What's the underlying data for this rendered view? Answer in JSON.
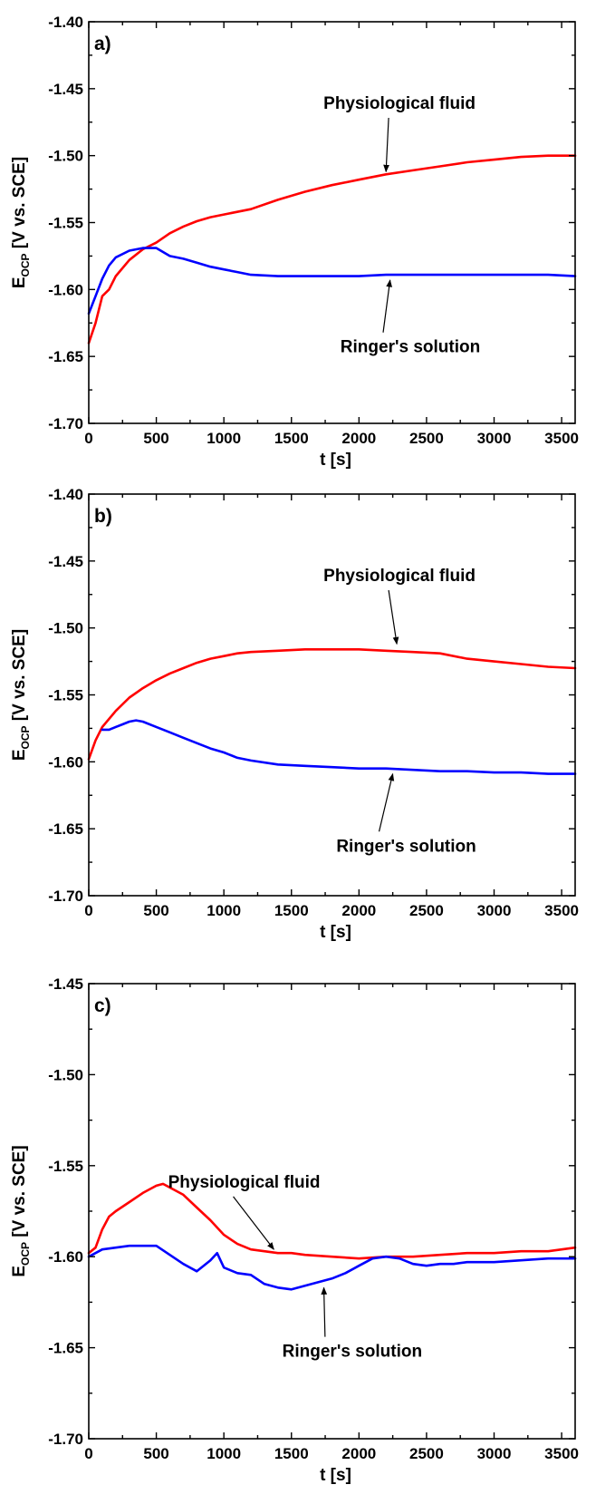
{
  "colors": {
    "physiological_fluid": "#ff0000",
    "ringers_solution": "#0000ff",
    "axes": "#000000"
  },
  "chart_data": [
    {
      "type": "line",
      "panel_label": "a)",
      "xlabel": "t [s]",
      "ylabel_main": "E",
      "ylabel_sub": "OCP",
      "ylabel_rest": " [V vs. SCE]",
      "xlim": [
        0,
        3600
      ],
      "ylim": [
        -1.7,
        -1.4
      ],
      "xticks": [
        "0",
        "500",
        "1000",
        "1500",
        "2000",
        "2500",
        "3000",
        "3500"
      ],
      "yticks": [
        "-1.40",
        "-1.45",
        "-1.50",
        "-1.55",
        "-1.60",
        "-1.65",
        "-1.70"
      ],
      "grid": false,
      "series": [
        {
          "name": "Physiological fluid",
          "x": [
            0,
            50,
            100,
            150,
            200,
            300,
            400,
            500,
            600,
            700,
            800,
            900,
            1000,
            1200,
            1400,
            1600,
            1800,
            2000,
            2200,
            2400,
            2600,
            2800,
            3000,
            3200,
            3400,
            3600
          ],
          "y": [
            -1.64,
            -1.625,
            -1.605,
            -1.6,
            -1.59,
            -1.578,
            -1.57,
            -1.565,
            -1.558,
            -1.553,
            -1.549,
            -1.546,
            -1.544,
            -1.54,
            -1.533,
            -1.527,
            -1.522,
            -1.518,
            -1.514,
            -1.511,
            -1.508,
            -1.505,
            -1.503,
            -1.501,
            -1.5,
            -1.5
          ]
        },
        {
          "name": "Ringer's solution",
          "x": [
            0,
            50,
            100,
            150,
            200,
            300,
            400,
            500,
            600,
            700,
            800,
            900,
            1000,
            1100,
            1200,
            1400,
            1600,
            1800,
            2000,
            2200,
            2400,
            2600,
            2800,
            3000,
            3200,
            3400,
            3600
          ],
          "y": [
            -1.618,
            -1.605,
            -1.592,
            -1.582,
            -1.576,
            -1.571,
            -1.569,
            -1.569,
            -1.575,
            -1.577,
            -1.58,
            -1.583,
            -1.585,
            -1.587,
            -1.589,
            -1.59,
            -1.59,
            -1.59,
            -1.59,
            -1.589,
            -1.589,
            -1.589,
            -1.589,
            -1.589,
            -1.589,
            -1.589,
            -1.59
          ]
        }
      ],
      "annotations": [
        {
          "text": "Physiological fluid",
          "series": "Physiological fluid",
          "label_x": 2300,
          "label_y": -1.465,
          "tip_x": 2200,
          "tip_y": -1.512
        },
        {
          "text": "Ringer's solution",
          "series": "Ringer's solution",
          "label_x": 2380,
          "label_y": -1.647,
          "tip_x": 2230,
          "tip_y": -1.593
        }
      ]
    },
    {
      "type": "line",
      "panel_label": "b)",
      "xlabel": "t [s]",
      "ylabel_main": "E",
      "ylabel_sub": "OCP",
      "ylabel_rest": " [V vs. SCE]",
      "xlim": [
        0,
        3600
      ],
      "ylim": [
        -1.7,
        -1.4
      ],
      "xticks": [
        "0",
        "500",
        "1000",
        "1500",
        "2000",
        "2500",
        "3000",
        "3500"
      ],
      "yticks": [
        "-1.40",
        "-1.45",
        "-1.50",
        "-1.55",
        "-1.60",
        "-1.65",
        "-1.70"
      ],
      "grid": false,
      "series": [
        {
          "name": "Physiological fluid",
          "x": [
            0,
            50,
            100,
            200,
            300,
            400,
            500,
            600,
            700,
            800,
            900,
            1000,
            1100,
            1200,
            1400,
            1600,
            1800,
            2000,
            2200,
            2400,
            2600,
            2800,
            3000,
            3200,
            3400,
            3600
          ],
          "y": [
            -1.598,
            -1.584,
            -1.574,
            -1.562,
            -1.552,
            -1.545,
            -1.539,
            -1.534,
            -1.53,
            -1.526,
            -1.523,
            -1.521,
            -1.519,
            -1.518,
            -1.517,
            -1.516,
            -1.516,
            -1.516,
            -1.517,
            -1.518,
            -1.519,
            -1.523,
            -1.525,
            -1.527,
            -1.529,
            -1.53
          ]
        },
        {
          "name": "Ringer's solution",
          "x": [
            100,
            150,
            200,
            250,
            300,
            350,
            400,
            500,
            600,
            700,
            800,
            900,
            1000,
            1100,
            1200,
            1400,
            1600,
            1800,
            2000,
            2200,
            2400,
            2600,
            2800,
            3000,
            3200,
            3400,
            3600
          ],
          "y": [
            -1.576,
            -1.576,
            -1.574,
            -1.572,
            -1.57,
            -1.569,
            -1.57,
            -1.574,
            -1.578,
            -1.582,
            -1.586,
            -1.59,
            -1.593,
            -1.597,
            -1.599,
            -1.602,
            -1.603,
            -1.604,
            -1.605,
            -1.605,
            -1.606,
            -1.607,
            -1.607,
            -1.608,
            -1.608,
            -1.609,
            -1.609
          ]
        }
      ],
      "annotations": [
        {
          "text": "Physiological fluid",
          "series": "Physiological fluid",
          "label_x": 2300,
          "label_y": -1.465,
          "tip_x": 2280,
          "tip_y": -1.512
        },
        {
          "text": "Ringer's solution",
          "series": "Ringer's solution",
          "label_x": 2350,
          "label_y": -1.667,
          "tip_x": 2250,
          "tip_y": -1.609
        }
      ]
    },
    {
      "type": "line",
      "panel_label": "c)",
      "xlabel": "t [s]",
      "ylabel_main": "E",
      "ylabel_sub": "OCP",
      "ylabel_rest": " [V vs. SCE]",
      "xlim": [
        0,
        3600
      ],
      "ylim": [
        -1.7,
        -1.45
      ],
      "xticks": [
        "0",
        "500",
        "1000",
        "1500",
        "2000",
        "2500",
        "3000",
        "3500"
      ],
      "yticks": [
        "-1.45",
        "-1.50",
        "-1.55",
        "-1.60",
        "-1.65",
        "-1.70"
      ],
      "grid": false,
      "series": [
        {
          "name": "Physiological fluid",
          "x": [
            0,
            50,
            100,
            150,
            200,
            300,
            400,
            500,
            550,
            600,
            700,
            800,
            900,
            1000,
            1100,
            1200,
            1300,
            1400,
            1500,
            1600,
            1800,
            2000,
            2200,
            2400,
            2600,
            2800,
            3000,
            3200,
            3400,
            3600
          ],
          "y": [
            -1.598,
            -1.595,
            -1.585,
            -1.578,
            -1.575,
            -1.57,
            -1.565,
            -1.561,
            -1.56,
            -1.562,
            -1.566,
            -1.573,
            -1.58,
            -1.588,
            -1.593,
            -1.596,
            -1.597,
            -1.598,
            -1.598,
            -1.599,
            -1.6,
            -1.601,
            -1.6,
            -1.6,
            -1.599,
            -1.598,
            -1.598,
            -1.597,
            -1.597,
            -1.595
          ]
        },
        {
          "name": "Ringer's solution",
          "x": [
            0,
            100,
            200,
            300,
            400,
            500,
            600,
            700,
            800,
            900,
            950,
            1000,
            1100,
            1200,
            1300,
            1400,
            1500,
            1600,
            1700,
            1800,
            1900,
            2000,
            2100,
            2200,
            2300,
            2400,
            2500,
            2600,
            2700,
            2800,
            3000,
            3200,
            3400,
            3600
          ],
          "y": [
            -1.6,
            -1.596,
            -1.595,
            -1.594,
            -1.594,
            -1.594,
            -1.599,
            -1.604,
            -1.608,
            -1.602,
            -1.598,
            -1.606,
            -1.609,
            -1.61,
            -1.615,
            -1.617,
            -1.618,
            -1.616,
            -1.614,
            -1.612,
            -1.609,
            -1.605,
            -1.601,
            -1.6,
            -1.601,
            -1.604,
            -1.605,
            -1.604,
            -1.604,
            -1.603,
            -1.603,
            -1.602,
            -1.601,
            -1.601
          ]
        }
      ],
      "annotations": [
        {
          "text": "Physiological fluid",
          "series": "Physiological fluid",
          "label_x": 1150,
          "label_y": -1.562,
          "tip_x": 1370,
          "tip_y": -1.596
        },
        {
          "text": "Ringer's solution",
          "series": "Ringer's solution",
          "label_x": 1950,
          "label_y": -1.655,
          "tip_x": 1740,
          "tip_y": -1.617
        }
      ]
    }
  ]
}
